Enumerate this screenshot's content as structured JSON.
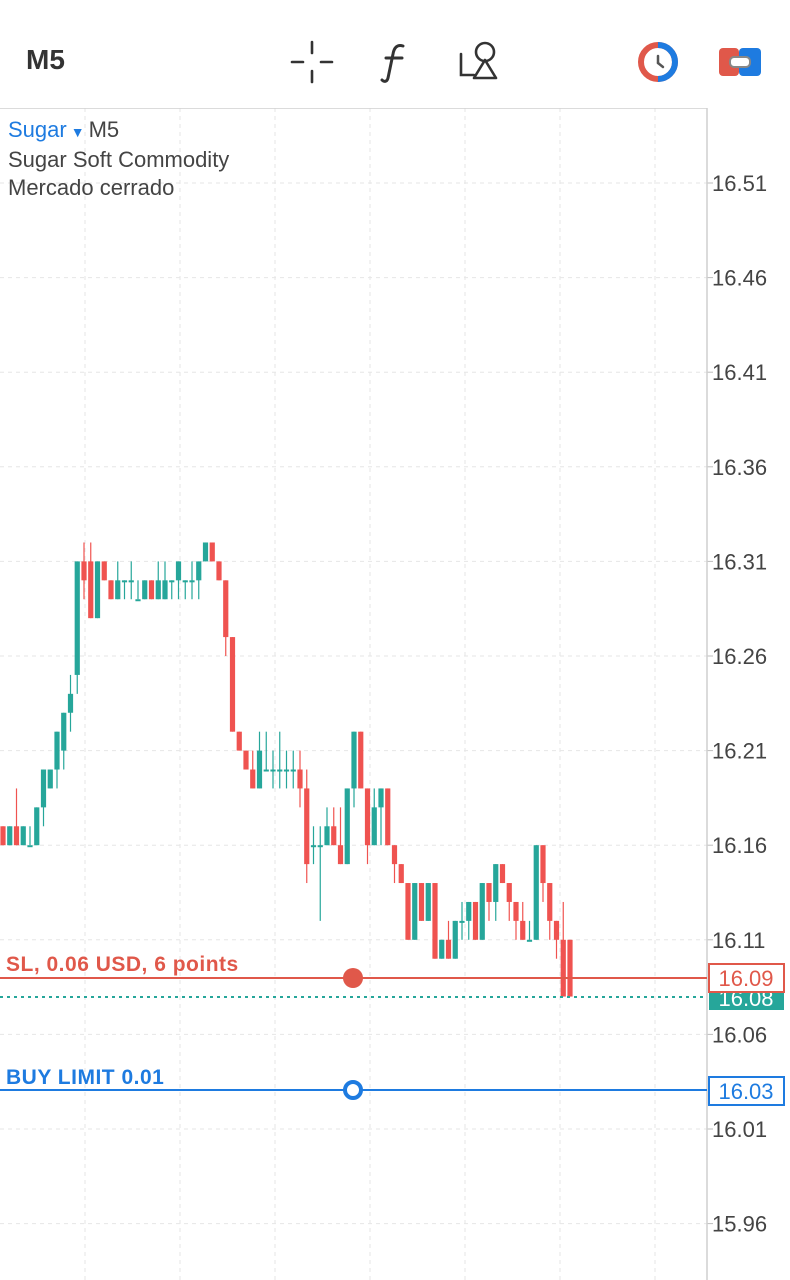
{
  "toolbar": {
    "timeframe": "M5",
    "icons": [
      "crosshair-icon",
      "function-icon",
      "objects-icon",
      "trade-mode-icon",
      "account-icon"
    ]
  },
  "symbol": {
    "name": "Sugar",
    "timeframe": "M5",
    "description": "Sugar Soft Commodity",
    "status": "Mercado cerrado"
  },
  "orders": {
    "sl_label": "SL, 0.06 USD, 6 points",
    "sl_price": "16.09",
    "buy_limit_label": "BUY LIMIT 0.01",
    "buy_limit_price": "16.03",
    "current_price": "16.08"
  },
  "colors": {
    "bull": "#26a69a",
    "bear": "#ef5350",
    "sl_line": "#e0584a",
    "buy_limit": "#1e7be0",
    "bid_line": "#26a69a",
    "grid": "#e6e6e6"
  },
  "chart_data": {
    "type": "candlestick",
    "y_ticks": [
      16.51,
      16.46,
      16.41,
      16.36,
      16.31,
      16.26,
      16.21,
      16.16,
      16.11,
      16.06,
      16.01,
      15.96
    ],
    "y_tick_labels": [
      "16.51",
      "16.46",
      "16.41",
      "16.36",
      "16.31",
      "16.26",
      "16.21",
      "16.16",
      "16.11",
      "16.06",
      "16.01",
      "15.96"
    ],
    "ylim": [
      15.94,
      16.55
    ],
    "grid": true,
    "candles": [
      [
        16.17,
        16.17,
        16.16,
        16.16
      ],
      [
        16.16,
        16.17,
        16.16,
        16.17
      ],
      [
        16.17,
        16.19,
        16.16,
        16.16
      ],
      [
        16.16,
        16.17,
        16.16,
        16.17
      ],
      [
        16.16,
        16.17,
        16.16,
        16.16
      ],
      [
        16.16,
        16.18,
        16.16,
        16.18
      ],
      [
        16.18,
        16.2,
        16.17,
        16.2
      ],
      [
        16.19,
        16.2,
        16.19,
        16.2
      ],
      [
        16.2,
        16.22,
        16.19,
        16.22
      ],
      [
        16.21,
        16.23,
        16.2,
        16.23
      ],
      [
        16.23,
        16.25,
        16.22,
        16.24
      ],
      [
        16.25,
        16.31,
        16.24,
        16.31
      ],
      [
        16.31,
        16.32,
        16.29,
        16.3
      ],
      [
        16.31,
        16.32,
        16.28,
        16.28
      ],
      [
        16.28,
        16.31,
        16.28,
        16.31
      ],
      [
        16.31,
        16.31,
        16.3,
        16.3
      ],
      [
        16.3,
        16.3,
        16.29,
        16.29
      ],
      [
        16.29,
        16.31,
        16.29,
        16.3
      ],
      [
        16.3,
        16.3,
        16.29,
        16.3
      ],
      [
        16.3,
        16.31,
        16.29,
        16.3
      ],
      [
        16.29,
        16.3,
        16.29,
        16.29
      ],
      [
        16.29,
        16.3,
        16.29,
        16.3
      ],
      [
        16.3,
        16.3,
        16.29,
        16.29
      ],
      [
        16.29,
        16.31,
        16.29,
        16.3
      ],
      [
        16.29,
        16.31,
        16.29,
        16.3
      ],
      [
        16.3,
        16.3,
        16.29,
        16.3
      ],
      [
        16.3,
        16.31,
        16.29,
        16.31
      ],
      [
        16.3,
        16.3,
        16.29,
        16.3
      ],
      [
        16.3,
        16.31,
        16.29,
        16.3
      ],
      [
        16.3,
        16.31,
        16.29,
        16.31
      ],
      [
        16.31,
        16.32,
        16.31,
        16.32
      ],
      [
        16.32,
        16.32,
        16.31,
        16.31
      ],
      [
        16.31,
        16.31,
        16.3,
        16.3
      ],
      [
        16.3,
        16.3,
        16.26,
        16.27
      ],
      [
        16.27,
        16.27,
        16.22,
        16.22
      ],
      [
        16.22,
        16.22,
        16.21,
        16.21
      ],
      [
        16.21,
        16.21,
        16.2,
        16.2
      ],
      [
        16.2,
        16.21,
        16.19,
        16.19
      ],
      [
        16.19,
        16.22,
        16.19,
        16.21
      ],
      [
        16.2,
        16.22,
        16.2,
        16.2
      ],
      [
        16.2,
        16.21,
        16.19,
        16.2
      ],
      [
        16.2,
        16.22,
        16.19,
        16.2
      ],
      [
        16.2,
        16.21,
        16.19,
        16.2
      ],
      [
        16.2,
        16.21,
        16.19,
        16.2
      ],
      [
        16.2,
        16.21,
        16.18,
        16.19
      ],
      [
        16.19,
        16.2,
        16.14,
        16.15
      ],
      [
        16.16,
        16.17,
        16.15,
        16.16
      ],
      [
        16.16,
        16.17,
        16.12,
        16.16
      ],
      [
        16.16,
        16.18,
        16.16,
        16.17
      ],
      [
        16.17,
        16.18,
        16.16,
        16.16
      ],
      [
        16.16,
        16.18,
        16.15,
        16.15
      ],
      [
        16.15,
        16.19,
        16.15,
        16.19
      ],
      [
        16.19,
        16.22,
        16.18,
        16.22
      ],
      [
        16.22,
        16.22,
        16.19,
        16.19
      ],
      [
        16.19,
        16.19,
        16.15,
        16.16
      ],
      [
        16.16,
        16.19,
        16.16,
        16.18
      ],
      [
        16.18,
        16.19,
        16.16,
        16.19
      ],
      [
        16.19,
        16.19,
        16.16,
        16.16
      ],
      [
        16.16,
        16.16,
        16.14,
        16.15
      ],
      [
        16.15,
        16.15,
        16.14,
        16.14
      ],
      [
        16.14,
        16.14,
        16.11,
        16.11
      ],
      [
        16.11,
        16.14,
        16.11,
        16.14
      ],
      [
        16.14,
        16.14,
        16.12,
        16.12
      ],
      [
        16.12,
        16.14,
        16.12,
        16.14
      ],
      [
        16.14,
        16.14,
        16.1,
        16.1
      ],
      [
        16.1,
        16.11,
        16.1,
        16.11
      ],
      [
        16.11,
        16.12,
        16.1,
        16.1
      ],
      [
        16.1,
        16.12,
        16.1,
        16.12
      ],
      [
        16.12,
        16.13,
        16.11,
        16.12
      ],
      [
        16.12,
        16.13,
        16.11,
        16.13
      ],
      [
        16.13,
        16.13,
        16.11,
        16.11
      ],
      [
        16.11,
        16.14,
        16.11,
        16.14
      ],
      [
        16.14,
        16.14,
        16.12,
        16.13
      ],
      [
        16.13,
        16.15,
        16.12,
        16.15
      ],
      [
        16.15,
        16.15,
        16.14,
        16.14
      ],
      [
        16.14,
        16.14,
        16.12,
        16.13
      ],
      [
        16.13,
        16.13,
        16.11,
        16.12
      ],
      [
        16.12,
        16.13,
        16.11,
        16.11
      ],
      [
        16.11,
        16.12,
        16.11,
        16.11
      ],
      [
        16.11,
        16.16,
        16.11,
        16.16
      ],
      [
        16.16,
        16.16,
        16.13,
        16.14
      ],
      [
        16.14,
        16.14,
        16.11,
        16.12
      ],
      [
        16.12,
        16.12,
        16.1,
        16.11
      ],
      [
        16.11,
        16.13,
        16.08,
        16.08
      ],
      [
        16.11,
        16.11,
        16.08,
        16.08
      ]
    ]
  }
}
